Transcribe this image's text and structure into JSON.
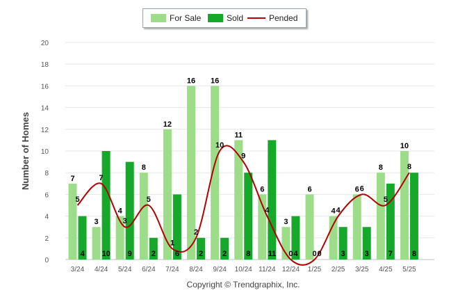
{
  "legend": {
    "for_sale": "For Sale",
    "sold": "Sold",
    "pended": "Pended"
  },
  "footer": {
    "copyright": "Copyright © Trendgraphix, Inc."
  },
  "colors": {
    "for_sale": "#9ddd8a",
    "sold": "#16a82b",
    "pended": "#b30000",
    "grid": "#e6e6e6",
    "axis": "#c0c0c0",
    "text": "#555555"
  },
  "chart_data": {
    "type": "bar",
    "ylabel": "Number of Homes",
    "xlabel": "",
    "ylim": [
      0,
      20
    ],
    "yticks": [
      0,
      2,
      4,
      6,
      8,
      10,
      12,
      14,
      16,
      18,
      20
    ],
    "categories": [
      "3/24",
      "4/24",
      "5/24",
      "6/24",
      "7/24",
      "8/24",
      "9/24",
      "10/24",
      "11/24",
      "12/24",
      "1/25",
      "2/25",
      "3/25",
      "4/25",
      "5/25"
    ],
    "series": [
      {
        "name": "For Sale",
        "type": "bar",
        "values": [
          7,
          3,
          4,
          8,
          12,
          16,
          16,
          11,
          6,
          3,
          6,
          4,
          6,
          8,
          10
        ]
      },
      {
        "name": "Sold",
        "type": "bar",
        "values": [
          4,
          10,
          9,
          2,
          6,
          2,
          2,
          8,
          11,
          4,
          0,
          3,
          3,
          7,
          8
        ]
      },
      {
        "name": "Pended",
        "type": "line",
        "values": [
          5,
          7,
          3,
          5,
          1,
          2,
          10,
          9,
          4,
          0,
          0,
          4,
          6,
          5,
          8
        ]
      }
    ],
    "legend_position": "top-center",
    "grid": true
  }
}
